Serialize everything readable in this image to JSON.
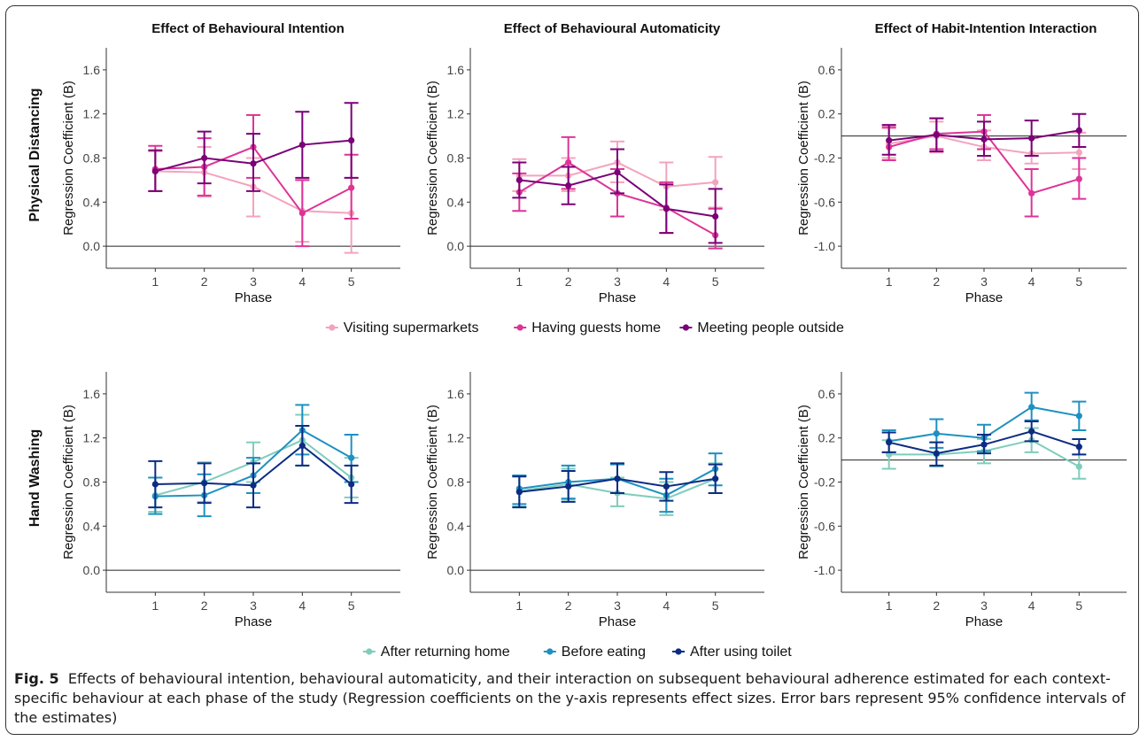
{
  "row_labels": [
    "Physical Distancing",
    "Hand Washing"
  ],
  "column_titles": [
    "Effect of Behavioural Intention",
    "Effect of Behavioural Automaticity",
    "Effect of Habit-Intention Interaction"
  ],
  "legends": {
    "physical": [
      {
        "name": "Visiting supermarkets",
        "color": "#f4a3bd"
      },
      {
        "name": "Having guests home",
        "color": "#dd3497"
      },
      {
        "name": "Meeting people outside",
        "color": "#7a0177"
      }
    ],
    "hand": [
      {
        "name": "After returning home",
        "color": "#7fcdbb"
      },
      {
        "name": "Before eating",
        "color": "#1d91c0"
      },
      {
        "name": "After using toilet",
        "color": "#0c2c84"
      }
    ]
  },
  "caption": {
    "label": "Fig. 5",
    "text": "Effects of behavioural intention, behavioural automaticity, and their interaction on subsequent behavioural adherence estimated for each context-specific behaviour at each phase of the study (Regression coefficients on the y-axis represents effect sizes. Error bars represent 95% confidence intervals of the estimates)"
  },
  "chart_data": [
    {
      "type": "line",
      "row": "Physical Distancing",
      "title": "Effect of Behavioural Intention",
      "xlabel": "Phase",
      "ylabel": "Regression Coefficient (B)",
      "x": [
        1,
        2,
        3,
        4,
        5
      ],
      "ylim": [
        -0.2,
        1.8
      ],
      "yticks": [
        0.0,
        0.4,
        0.8,
        1.2,
        1.6
      ],
      "refline": 0,
      "series": [
        {
          "name": "Visiting supermarkets",
          "color": "#f4a3bd",
          "values": [
            0.68,
            0.67,
            0.54,
            0.32,
            0.3
          ],
          "lower": [
            0.5,
            0.45,
            0.27,
            0.04,
            -0.06
          ],
          "upper": [
            0.86,
            0.9,
            0.8,
            0.6,
            0.62
          ]
        },
        {
          "name": "Having guests home",
          "color": "#dd3497",
          "values": [
            0.7,
            0.72,
            0.9,
            0.3,
            0.53
          ],
          "lower": [
            0.5,
            0.46,
            0.62,
            0.0,
            0.25
          ],
          "upper": [
            0.91,
            0.98,
            1.19,
            0.6,
            0.83
          ]
        },
        {
          "name": "Meeting people outside",
          "color": "#7a0177",
          "values": [
            0.68,
            0.8,
            0.75,
            0.92,
            0.96
          ],
          "lower": [
            0.5,
            0.57,
            0.5,
            0.62,
            0.62
          ],
          "upper": [
            0.87,
            1.04,
            1.02,
            1.22,
            1.3
          ]
        }
      ]
    },
    {
      "type": "line",
      "row": "Physical Distancing",
      "title": "Effect of Behavioural Automaticity",
      "xlabel": "Phase",
      "ylabel": "Regression Coefficient (B)",
      "x": [
        1,
        2,
        3,
        4,
        5
      ],
      "ylim": [
        -0.2,
        1.8
      ],
      "yticks": [
        0.0,
        0.4,
        0.8,
        1.2,
        1.6
      ],
      "refline": 0,
      "series": [
        {
          "name": "Visiting supermarkets",
          "color": "#f4a3bd",
          "values": [
            0.64,
            0.64,
            0.76,
            0.54,
            0.58
          ],
          "lower": [
            0.5,
            0.5,
            0.58,
            0.33,
            0.35
          ],
          "upper": [
            0.79,
            0.8,
            0.95,
            0.76,
            0.81
          ]
        },
        {
          "name": "Having guests home",
          "color": "#dd3497",
          "values": [
            0.49,
            0.76,
            0.48,
            0.35,
            0.1
          ],
          "lower": [
            0.32,
            0.52,
            0.27,
            0.12,
            -0.02
          ],
          "upper": [
            0.66,
            0.99,
            0.7,
            0.58,
            0.34
          ]
        },
        {
          "name": "Meeting people outside",
          "color": "#7a0177",
          "values": [
            0.6,
            0.55,
            0.67,
            0.34,
            0.27
          ],
          "lower": [
            0.44,
            0.38,
            0.48,
            0.12,
            0.03
          ],
          "upper": [
            0.76,
            0.72,
            0.88,
            0.56,
            0.52
          ]
        }
      ]
    },
    {
      "type": "line",
      "row": "Physical Distancing",
      "title": "Effect of Habit-Intention Interaction",
      "xlabel": "Phase",
      "ylabel": "Regression Coefficient (B)",
      "x": [
        1,
        2,
        3,
        4,
        5
      ],
      "ylim": [
        -1.2,
        0.8
      ],
      "yticks": [
        -1.0,
        -0.6,
        -0.2,
        0.2,
        0.6
      ],
      "refline": 0,
      "series": [
        {
          "name": "Visiting supermarkets",
          "color": "#f4a3bd",
          "values": [
            -0.07,
            0.0,
            -0.1,
            -0.16,
            -0.15
          ],
          "lower": [
            -0.2,
            -0.15,
            -0.22,
            -0.25,
            -0.3
          ],
          "upper": [
            0.07,
            0.13,
            0.05,
            -0.02,
            0.03
          ]
        },
        {
          "name": "Having guests home",
          "color": "#dd3497",
          "values": [
            -0.1,
            0.02,
            0.04,
            -0.52,
            -0.39
          ],
          "lower": [
            -0.22,
            -0.12,
            -0.12,
            -0.73,
            -0.57
          ],
          "upper": [
            0.08,
            0.16,
            0.19,
            -0.3,
            -0.2
          ]
        },
        {
          "name": "Meeting people outside",
          "color": "#7a0177",
          "values": [
            -0.04,
            0.01,
            -0.03,
            -0.02,
            0.05
          ],
          "lower": [
            -0.17,
            -0.14,
            -0.18,
            -0.18,
            -0.1
          ],
          "upper": [
            0.1,
            0.16,
            0.13,
            0.14,
            0.2
          ]
        }
      ]
    },
    {
      "type": "line",
      "row": "Hand Washing",
      "title": "",
      "xlabel": "Phase",
      "ylabel": "Regression Coefficient (B)",
      "x": [
        1,
        2,
        3,
        4,
        5
      ],
      "ylim": [
        -0.2,
        1.8
      ],
      "yticks": [
        0.0,
        0.4,
        0.8,
        1.2,
        1.6
      ],
      "refline": 0,
      "series": [
        {
          "name": "After returning home",
          "color": "#7fcdbb",
          "values": [
            0.68,
            0.8,
            0.98,
            1.18,
            0.84
          ],
          "lower": [
            0.53,
            0.62,
            0.8,
            0.95,
            0.66
          ],
          "upper": [
            0.84,
            0.98,
            1.16,
            1.41,
            1.02
          ]
        },
        {
          "name": "Before eating",
          "color": "#1d91c0",
          "values": [
            0.67,
            0.68,
            0.86,
            1.27,
            1.02
          ],
          "lower": [
            0.51,
            0.49,
            0.7,
            1.05,
            0.8
          ],
          "upper": [
            0.84,
            0.87,
            1.02,
            1.5,
            1.23
          ]
        },
        {
          "name": "After using toilet",
          "color": "#0c2c84",
          "values": [
            0.78,
            0.79,
            0.77,
            1.13,
            0.78
          ],
          "lower": [
            0.57,
            0.61,
            0.57,
            0.95,
            0.61
          ],
          "upper": [
            0.99,
            0.97,
            0.97,
            1.31,
            0.95
          ]
        }
      ]
    },
    {
      "type": "line",
      "row": "Hand Washing",
      "title": "",
      "xlabel": "Phase",
      "ylabel": "Regression Coefficient (B)",
      "x": [
        1,
        2,
        3,
        4,
        5
      ],
      "ylim": [
        -0.2,
        1.8
      ],
      "yticks": [
        0.0,
        0.4,
        0.8,
        1.2,
        1.6
      ],
      "refline": 0,
      "series": [
        {
          "name": "After returning home",
          "color": "#7fcdbb",
          "values": [
            0.72,
            0.78,
            0.7,
            0.65,
            0.83
          ],
          "lower": [
            0.58,
            0.64,
            0.58,
            0.5,
            0.7
          ],
          "upper": [
            0.86,
            0.92,
            0.84,
            0.8,
            0.97
          ]
        },
        {
          "name": "Before eating",
          "color": "#1d91c0",
          "values": [
            0.74,
            0.8,
            0.83,
            0.68,
            0.92
          ],
          "lower": [
            0.6,
            0.65,
            0.7,
            0.53,
            0.77
          ],
          "upper": [
            0.86,
            0.95,
            0.96,
            0.83,
            1.06
          ]
        },
        {
          "name": "After using toilet",
          "color": "#0c2c84",
          "values": [
            0.71,
            0.76,
            0.83,
            0.76,
            0.83
          ],
          "lower": [
            0.57,
            0.62,
            0.7,
            0.63,
            0.7
          ],
          "upper": [
            0.85,
            0.9,
            0.97,
            0.89,
            0.96
          ]
        }
      ]
    },
    {
      "type": "line",
      "row": "Hand Washing",
      "title": "",
      "xlabel": "Phase",
      "ylabel": "Regression Coefficient (B)",
      "x": [
        1,
        2,
        3,
        4,
        5
      ],
      "ylim": [
        -1.2,
        0.8
      ],
      "yticks": [
        -1.0,
        -0.6,
        -0.2,
        0.2,
        0.6
      ],
      "refline": 0,
      "series": [
        {
          "name": "After returning home",
          "color": "#7fcdbb",
          "values": [
            0.05,
            0.05,
            0.08,
            0.18,
            -0.06
          ],
          "lower": [
            -0.08,
            -0.06,
            -0.03,
            0.07,
            -0.17
          ],
          "upper": [
            0.18,
            0.16,
            0.19,
            0.29,
            0.05
          ]
        },
        {
          "name": "Before eating",
          "color": "#1d91c0",
          "values": [
            0.17,
            0.24,
            0.2,
            0.48,
            0.4
          ],
          "lower": [
            0.07,
            0.11,
            0.08,
            0.36,
            0.27
          ],
          "upper": [
            0.27,
            0.37,
            0.32,
            0.61,
            0.53
          ]
        },
        {
          "name": "After using toilet",
          "color": "#0c2c84",
          "values": [
            0.16,
            0.06,
            0.14,
            0.26,
            0.12
          ],
          "lower": [
            0.07,
            -0.05,
            0.06,
            0.17,
            0.05
          ],
          "upper": [
            0.25,
            0.16,
            0.23,
            0.35,
            0.19
          ]
        }
      ]
    }
  ]
}
